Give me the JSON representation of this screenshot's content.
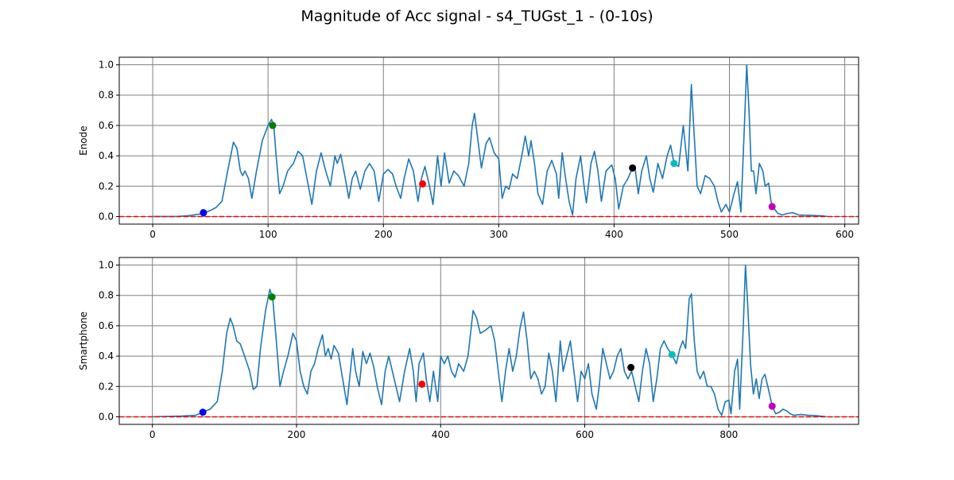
{
  "title": "Magnitude of Acc signal - s4_TUGst_1 - (0-10s)",
  "chart_data": [
    {
      "type": "line",
      "ylabel": "Enode",
      "grid": true,
      "xlim": [
        -29,
        612
      ],
      "ylim": [
        -0.05,
        1.05
      ],
      "xticks": [
        0,
        100,
        200,
        300,
        400,
        500,
        600
      ],
      "yticks": [
        {
          "value": 0,
          "label": "0.0"
        },
        0.2,
        0.4,
        0.6,
        0.8,
        {
          "value": 1,
          "label": "1.0"
        }
      ],
      "x": [
        0,
        20,
        30,
        40,
        45,
        50,
        55,
        60,
        65,
        70,
        73,
        76,
        78,
        80,
        83,
        86,
        90,
        95,
        100,
        103,
        105,
        107,
        110,
        113,
        117,
        122,
        126,
        130,
        135,
        138,
        142,
        146,
        150,
        154,
        158,
        160,
        163,
        167,
        170,
        173,
        176,
        180,
        184,
        188,
        192,
        196,
        200,
        204,
        208,
        211,
        215,
        218,
        222,
        226,
        230,
        233,
        236,
        240,
        243,
        247,
        250,
        253,
        257,
        261,
        265,
        270,
        274,
        277,
        279,
        282,
        285,
        289,
        292,
        296,
        300,
        303,
        306,
        309,
        312,
        316,
        320,
        323,
        326,
        328,
        331,
        334,
        338,
        342,
        346,
        350,
        352,
        355,
        358,
        361,
        364,
        367,
        371,
        374,
        376,
        380,
        383,
        386,
        389,
        393,
        398,
        401,
        404,
        408,
        412,
        416,
        418,
        421,
        424,
        428,
        431,
        434,
        438,
        442,
        446,
        449,
        452,
        456,
        460,
        464,
        467,
        469,
        472,
        475,
        479,
        483,
        487,
        490,
        493,
        497,
        500,
        504,
        507,
        510,
        513,
        515,
        517,
        519,
        521,
        523,
        526,
        529,
        531,
        534,
        536,
        538,
        542,
        546,
        550,
        555,
        560,
        570,
        580,
        585
      ],
      "series": [
        {
          "color": "#1f77b4",
          "values": [
            0,
            0,
            0.005,
            0.015,
            0.025,
            0.04,
            0.06,
            0.1,
            0.3,
            0.49,
            0.45,
            0.3,
            0.27,
            0.3,
            0.25,
            0.12,
            0.3,
            0.5,
            0.6,
            0.64,
            0.6,
            0.4,
            0.15,
            0.2,
            0.3,
            0.35,
            0.43,
            0.4,
            0.2,
            0.08,
            0.3,
            0.42,
            0.3,
            0.2,
            0.4,
            0.35,
            0.41,
            0.25,
            0.12,
            0.25,
            0.3,
            0.18,
            0.3,
            0.35,
            0.3,
            0.1,
            0.28,
            0.31,
            0.28,
            0.2,
            0.12,
            0.25,
            0.38,
            0.3,
            0.1,
            0.25,
            0.33,
            0.2,
            0.08,
            0.4,
            0.2,
            0.42,
            0.22,
            0.3,
            0.27,
            0.2,
            0.35,
            0.6,
            0.68,
            0.5,
            0.32,
            0.48,
            0.52,
            0.42,
            0.38,
            0.12,
            0.2,
            0.18,
            0.28,
            0.25,
            0.4,
            0.53,
            0.4,
            0.5,
            0.35,
            0.15,
            0.08,
            0.3,
            0.37,
            0.28,
            0.12,
            0.42,
            0.25,
            0.1,
            0.01,
            0.25,
            0.4,
            0.2,
            0.09,
            0.35,
            0.43,
            0.3,
            0.1,
            0.3,
            0.34,
            0.25,
            0.05,
            0.2,
            0.25,
            0.32,
            0.33,
            0.15,
            0.3,
            0.4,
            0.25,
            0.16,
            0.35,
            0.25,
            0.4,
            0.47,
            0.35,
            0.33,
            0.6,
            0.3,
            0.87,
            0.6,
            0.2,
            0.15,
            0.27,
            0.25,
            0.2,
            0.1,
            0.03,
            0.08,
            0.03,
            0.15,
            0.23,
            0.03,
            0.6,
            1.0,
            0.7,
            0.3,
            0.3,
            0.15,
            0.35,
            0.3,
            0.2,
            0.22,
            0.1,
            0.06,
            0.02,
            0.01,
            0.02,
            0.025,
            0.01,
            0.008,
            0.005,
            0
          ]
        }
      ],
      "markers": {
        "x": [
          44,
          104,
          234,
          416,
          452,
          537
        ],
        "values": [
          0.025,
          0.6,
          0.215,
          0.32,
          0.35,
          0.065
        ],
        "colors": [
          "#0000ff",
          "#008000",
          "#ff0000",
          "#000000",
          "#00bfbf",
          "#bf00bf"
        ]
      },
      "hline": {
        "value": 0,
        "color": "#ff0000"
      }
    },
    {
      "type": "line",
      "ylabel": "Smartphone",
      "grid": true,
      "xlim": [
        -46,
        980
      ],
      "ylim": [
        -0.05,
        1.05
      ],
      "xticks": [
        0,
        200,
        400,
        600,
        800
      ],
      "yticks": [
        {
          "value": 0,
          "label": "0.0"
        },
        0.2,
        0.4,
        0.6,
        0.8,
        {
          "value": 1,
          "label": "1.0"
        }
      ],
      "x": [
        0,
        40,
        60,
        70,
        80,
        90,
        97,
        103,
        108,
        112,
        117,
        122,
        128,
        135,
        140,
        145,
        150,
        157,
        163,
        167,
        172,
        177,
        182,
        188,
        195,
        200,
        205,
        210,
        215,
        220,
        225,
        230,
        236,
        240,
        244,
        248,
        252,
        258,
        264,
        270,
        278,
        282,
        287,
        292,
        297,
        302,
        307,
        312,
        318,
        323,
        328,
        333,
        338,
        343,
        350,
        357,
        362,
        366,
        370,
        376,
        380,
        385,
        390,
        396,
        400,
        405,
        410,
        415,
        420,
        425,
        432,
        438,
        445,
        450,
        455,
        462,
        470,
        475,
        480,
        485,
        490,
        495,
        500,
        505,
        510,
        515,
        520,
        525,
        530,
        535,
        540,
        545,
        550,
        555,
        560,
        566,
        570,
        575,
        580,
        585,
        590,
        595,
        600,
        605,
        610,
        616,
        620,
        625,
        630,
        635,
        640,
        645,
        650,
        655,
        660,
        665,
        670,
        675,
        680,
        685,
        690,
        695,
        700,
        705,
        710,
        715,
        722,
        727,
        732,
        736,
        740,
        745,
        748,
        752,
        756,
        760,
        765,
        770,
        775,
        780,
        785,
        790,
        795,
        800,
        803,
        808,
        812,
        815,
        820,
        823,
        826,
        830,
        834,
        838,
        842,
        846,
        850,
        855,
        860,
        865,
        870,
        875,
        880,
        885,
        890,
        900,
        910,
        920,
        935
      ],
      "series": [
        {
          "color": "#1f77b4",
          "values": [
            0,
            0.005,
            0.01,
            0.03,
            0.05,
            0.1,
            0.3,
            0.55,
            0.65,
            0.6,
            0.5,
            0.48,
            0.4,
            0.3,
            0.18,
            0.2,
            0.45,
            0.7,
            0.84,
            0.78,
            0.5,
            0.2,
            0.3,
            0.4,
            0.55,
            0.5,
            0.3,
            0.2,
            0.15,
            0.3,
            0.35,
            0.45,
            0.54,
            0.4,
            0.45,
            0.38,
            0.47,
            0.42,
            0.25,
            0.08,
            0.45,
            0.3,
            0.2,
            0.43,
            0.35,
            0.42,
            0.33,
            0.2,
            0.08,
            0.3,
            0.4,
            0.3,
            0.2,
            0.1,
            0.3,
            0.45,
            0.3,
            0.1,
            0.35,
            0.42,
            0.25,
            0.1,
            0.3,
            0.1,
            0.4,
            0.35,
            0.4,
            0.3,
            0.26,
            0.35,
            0.3,
            0.4,
            0.7,
            0.65,
            0.55,
            0.57,
            0.6,
            0.5,
            0.3,
            0.1,
            0.3,
            0.45,
            0.3,
            0.4,
            0.58,
            0.69,
            0.5,
            0.25,
            0.3,
            0.25,
            0.15,
            0.2,
            0.42,
            0.3,
            0.1,
            0.5,
            0.3,
            0.4,
            0.5,
            0.3,
            0.1,
            0.3,
            0.25,
            0.35,
            0.15,
            0.05,
            0.2,
            0.45,
            0.35,
            0.25,
            0.3,
            0.4,
            0.45,
            0.3,
            0.25,
            0.3,
            0.2,
            0.1,
            0.3,
            0.45,
            0.35,
            0.1,
            0.25,
            0.45,
            0.5,
            0.45,
            0.4,
            0.35,
            0.45,
            0.5,
            0.45,
            0.78,
            0.81,
            0.5,
            0.3,
            0.25,
            0.3,
            0.2,
            0.2,
            0.15,
            0.05,
            0.01,
            0.1,
            0.11,
            0.02,
            0.3,
            0.38,
            0.05,
            0.6,
            1.0,
            0.75,
            0.35,
            0.15,
            0.25,
            0.12,
            0.25,
            0.28,
            0.18,
            0.07,
            0.02,
            0.03,
            0.05,
            0.04,
            0.02,
            0.01,
            0.015,
            0.01,
            0.008,
            0
          ]
        }
      ],
      "markers": {
        "x": [
          70,
          166,
          374,
          664,
          721,
          860
        ],
        "values": [
          0.03,
          0.79,
          0.215,
          0.325,
          0.41,
          0.07
        ],
        "colors": [
          "#0000ff",
          "#008000",
          "#ff0000",
          "#000000",
          "#00bfbf",
          "#bf00bf"
        ]
      },
      "hline": {
        "value": 0,
        "color": "#ff0000"
      }
    }
  ]
}
